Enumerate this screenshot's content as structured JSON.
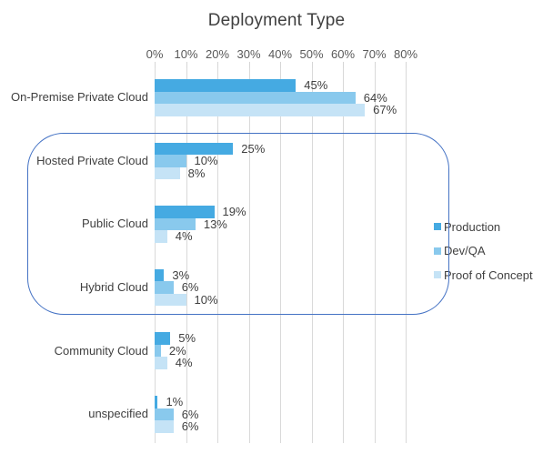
{
  "chart_data": {
    "type": "bar",
    "orientation": "horizontal",
    "title": "Deployment Type",
    "categories": [
      "On-Premise Private Cloud",
      "Hosted Private Cloud",
      "Public Cloud",
      "Hybrid Cloud",
      "Community Cloud",
      "unspecified"
    ],
    "series": [
      {
        "name": "Production",
        "color": "#45aae2",
        "values": [
          45,
          25,
          19,
          3,
          5,
          1
        ]
      },
      {
        "name": "Dev/QA",
        "color": "#89c9ed",
        "values": [
          64,
          10,
          13,
          6,
          2,
          6
        ]
      },
      {
        "name": "Proof of Concept",
        "color": "#c5e3f6",
        "values": [
          67,
          8,
          4,
          10,
          4,
          6
        ]
      }
    ],
    "value_suffix": "%",
    "data_labels": true,
    "x_axis": {
      "position": "top",
      "min": 0,
      "max": 80,
      "tick_labels": [
        "0%",
        "10%",
        "20%",
        "30%",
        "40%",
        "50%",
        "60%",
        "70%",
        "80%"
      ]
    },
    "grid": true,
    "legend_position": "right"
  },
  "annotation": {
    "shape": "rounded-rectangle",
    "stroke_color": "#4472c4",
    "highlighted_categories": [
      "Hosted Private Cloud",
      "Public Cloud",
      "Hybrid Cloud"
    ]
  },
  "colors": {
    "background": "#ffffff",
    "gridline": "#d9d9d9",
    "axis_text": "#595959",
    "label_text": "#404040"
  }
}
